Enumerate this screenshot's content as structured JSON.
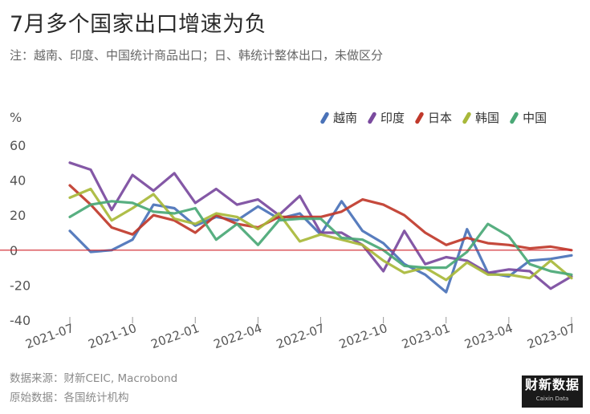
{
  "header": {
    "title": "7月多个国家出口增速为负",
    "subtitle": "注：越南、印度、中国统计商品出口；日、韩统计整体出口，未做区分",
    "unit": "%"
  },
  "footer": {
    "source1": "数据来源：财新CEIC, Macrobond",
    "source2": "原始数据：各国统计机构",
    "logo_zh": "财新数据",
    "logo_en": "Caixin Data"
  },
  "chart_data": {
    "type": "line",
    "ylim": [
      -40,
      60
    ],
    "yticks": [
      60,
      40,
      20,
      0,
      -20,
      -40
    ],
    "ytick_labels": [
      "60",
      "40",
      "20",
      "0",
      "-20",
      "-40"
    ],
    "x": [
      "2021-07",
      "2021-08",
      "2021-09",
      "2021-10",
      "2021-11",
      "2021-12",
      "2022-01",
      "2022-02",
      "2022-03",
      "2022-04",
      "2022-05",
      "2022-06",
      "2022-07",
      "2022-08",
      "2022-09",
      "2022-10",
      "2022-11",
      "2022-12",
      "2023-01",
      "2023-02",
      "2023-03",
      "2023-04",
      "2023-05",
      "2023-06",
      "2023-07"
    ],
    "xtick_labels": [
      "2021-07",
      "2021-10",
      "2022-01",
      "2022-04",
      "2022-07",
      "2022-10",
      "2023-01",
      "2023-04",
      "2023-07"
    ],
    "xtick_index": [
      0,
      3,
      6,
      9,
      12,
      15,
      18,
      21,
      24
    ],
    "reference_line": 0,
    "reference_color": "#d0232a",
    "grid": false,
    "legend_position": "top-right",
    "series": [
      {
        "name": "越南",
        "color": "#4a72b8",
        "values": [
          11,
          -1,
          0,
          6,
          26,
          24,
          14,
          19,
          17,
          25,
          18,
          21,
          9,
          28,
          11,
          4,
          -8,
          -14,
          -24,
          12,
          -13,
          -15,
          -6,
          -5,
          -3
        ]
      },
      {
        "name": "印度",
        "color": "#7a4a9e",
        "values": [
          50,
          46,
          23,
          43,
          34,
          44,
          27,
          35,
          26,
          29,
          20,
          31,
          10,
          10,
          3,
          -12,
          11,
          -8,
          -4,
          -6,
          -13,
          -11,
          -12,
          -22,
          -15
        ]
      },
      {
        "name": "日本",
        "color": "#c0392b",
        "values": [
          37,
          26,
          13,
          9,
          20,
          17,
          10,
          20,
          15,
          13,
          19,
          19,
          19,
          22,
          29,
          26,
          20,
          10,
          3,
          7,
          4,
          3,
          1,
          2,
          0
        ]
      },
      {
        "name": "韩国",
        "color": "#a8b83a",
        "values": [
          30,
          35,
          17,
          24,
          32,
          18,
          15,
          21,
          19,
          12,
          21,
          5,
          9,
          6,
          3,
          -6,
          -13,
          -10,
          -17,
          -7,
          -14,
          -14,
          -16,
          -6,
          -16
        ]
      },
      {
        "name": "中国",
        "color": "#4aa876",
        "values": [
          19,
          26,
          28,
          27,
          22,
          21,
          24,
          6,
          15,
          3,
          17,
          18,
          18,
          7,
          6,
          0,
          -9,
          -10,
          -10,
          -1,
          15,
          8,
          -8,
          -12,
          -14
        ]
      }
    ]
  }
}
